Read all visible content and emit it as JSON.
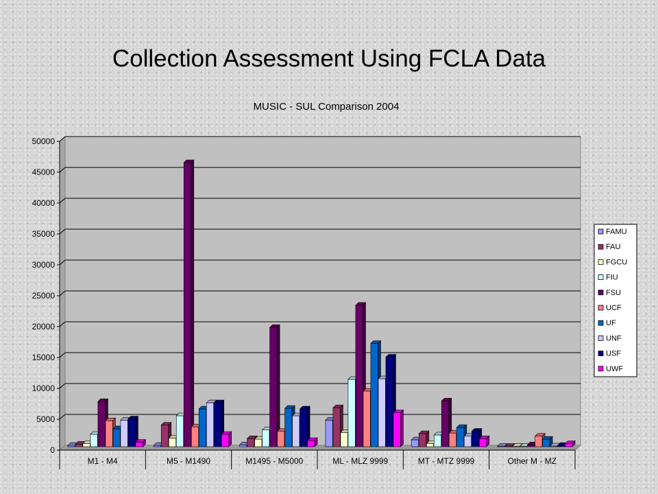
{
  "slide": {
    "title": "Collection Assessment Using FCLA Data"
  },
  "chart_data": {
    "type": "bar",
    "title": "MUSIC - SUL Comparison 2004",
    "xlabel": "",
    "ylabel": "",
    "ylim": [
      0,
      50000
    ],
    "yticks": [
      0,
      5000,
      10000,
      15000,
      20000,
      25000,
      30000,
      35000,
      40000,
      45000,
      50000
    ],
    "grid": true,
    "legend_position": "right",
    "categories": [
      "M1 - M4",
      "M5 - M1490",
      "M1495 - M5000",
      "ML - MLZ 9999",
      "MT - MTZ 9999",
      "Other M - MZ"
    ],
    "series": [
      {
        "name": "FAMU",
        "color": "#9999ff",
        "values": [
          200,
          200,
          300,
          4300,
          1100,
          50
        ]
      },
      {
        "name": "FAU",
        "color": "#993366",
        "values": [
          400,
          3500,
          1300,
          6300,
          2100,
          50
        ]
      },
      {
        "name": "FGCU",
        "color": "#ffffcc",
        "values": [
          500,
          1400,
          1200,
          2300,
          500,
          50
        ]
      },
      {
        "name": "FIU",
        "color": "#ccffff",
        "values": [
          2000,
          5000,
          2700,
          10900,
          1900,
          50
        ]
      },
      {
        "name": "FSU",
        "color": "#660066",
        "values": [
          7300,
          46000,
          19300,
          22900,
          7400,
          300
        ]
      },
      {
        "name": "UCF",
        "color": "#ff8080",
        "values": [
          4200,
          3200,
          2500,
          9000,
          2200,
          1700
        ]
      },
      {
        "name": "UF",
        "color": "#0066cc",
        "values": [
          2900,
          6100,
          6200,
          16700,
          3100,
          1200
        ]
      },
      {
        "name": "UNF",
        "color": "#ccccff",
        "values": [
          4300,
          7100,
          5000,
          11000,
          1700,
          100
        ]
      },
      {
        "name": "USF",
        "color": "#000080",
        "values": [
          4500,
          7100,
          6100,
          14500,
          2500,
          200
        ]
      },
      {
        "name": "UWF",
        "color": "#ff00ff",
        "values": [
          700,
          2000,
          1000,
          5500,
          1300,
          500
        ]
      }
    ]
  }
}
